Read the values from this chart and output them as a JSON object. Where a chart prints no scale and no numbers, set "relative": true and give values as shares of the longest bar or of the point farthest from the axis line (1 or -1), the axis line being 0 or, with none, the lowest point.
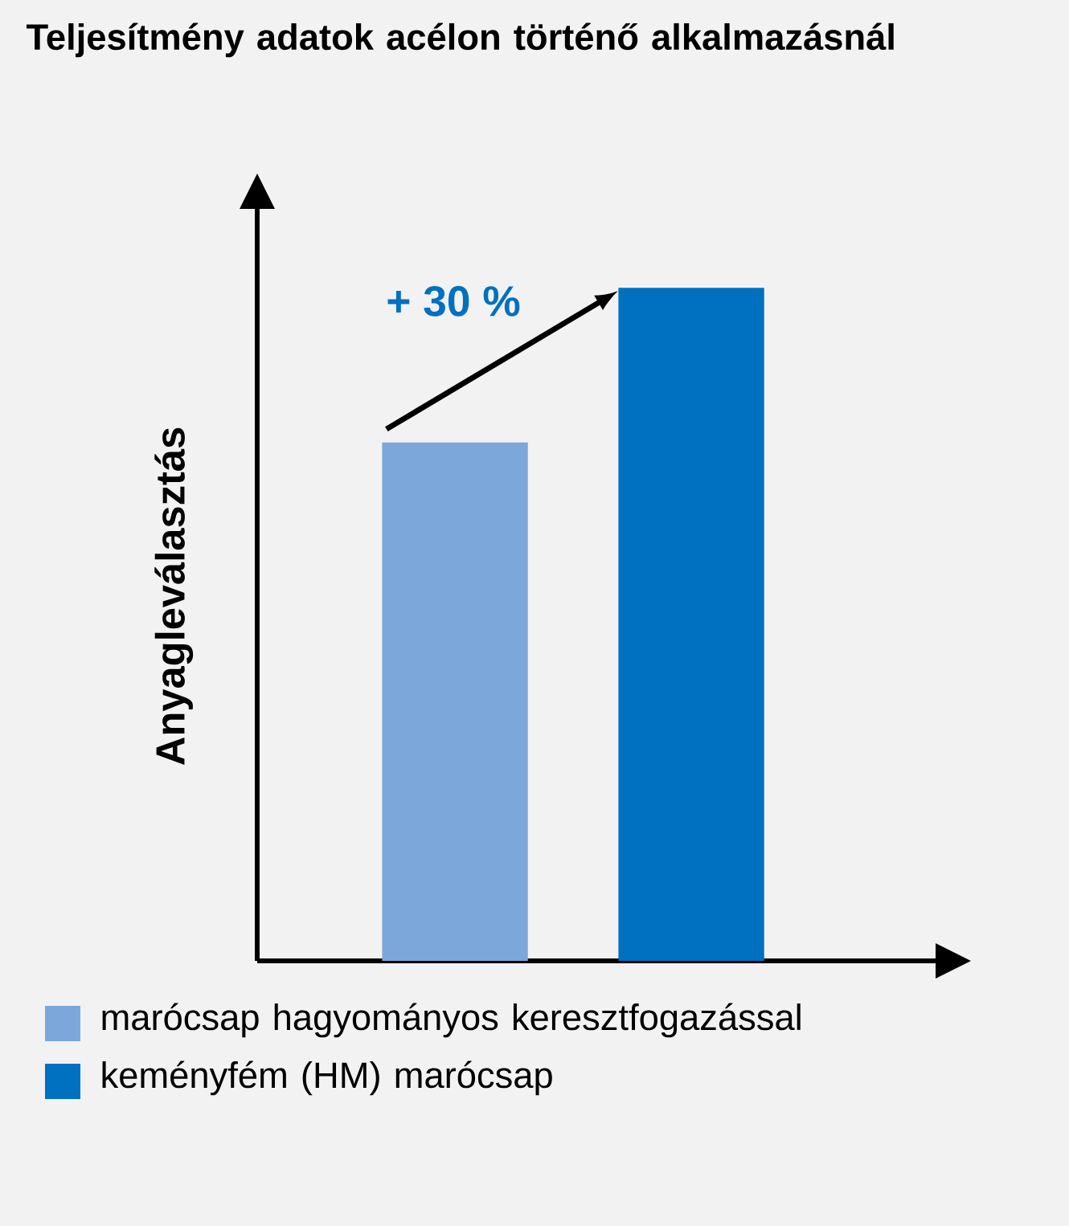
{
  "chart_data": {
    "type": "bar",
    "title": "Teljesítmény adatok acélon történő alkalmazásnál",
    "ylabel": "Anyagleválasztás",
    "relative": true,
    "categories": [
      null
    ],
    "series": [
      {
        "name": "marócsap hagyományos keresztfogazással",
        "color": "#7ba7da",
        "values": [
          0.77
        ]
      },
      {
        "name": "keményfém (HM) marócsap",
        "color": "#0070c0",
        "values": [
          1
        ]
      }
    ],
    "annotations": [
      "+ 30 %"
    ],
    "legend": "bottom"
  }
}
